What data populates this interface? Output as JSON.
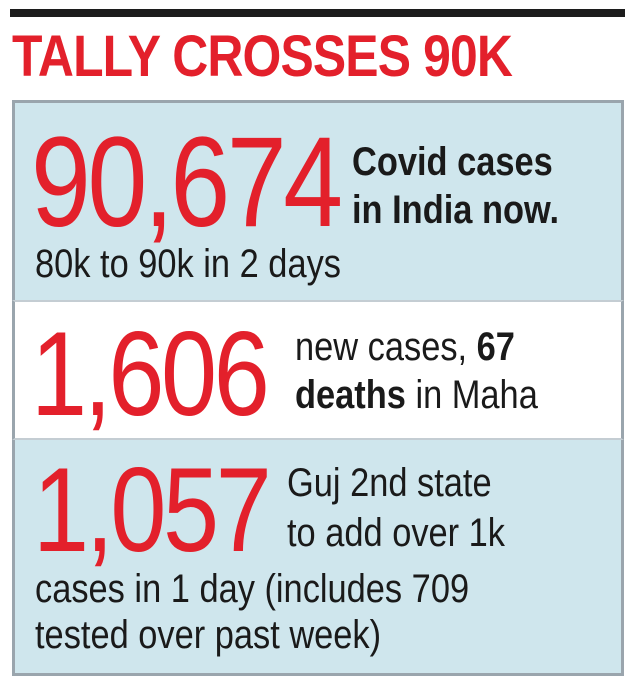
{
  "headline": "TALLY CROSSES 90K",
  "colors": {
    "accent_red": "#e3202b",
    "panel_blue": "#cfe6ed",
    "text_dark": "#1a1a1a"
  },
  "stats": [
    {
      "number": "90,674",
      "line1": "Covid cases",
      "line2": "in India now.",
      "line3": "80k to 90k in 2 days"
    },
    {
      "number": "1,606",
      "line1_plain": "new cases, ",
      "line1_bold": "67",
      "line2_bold": "deaths",
      "line2_plain": " in Maha"
    },
    {
      "number": "1,057",
      "line1": "Guj 2nd state",
      "line2": "to add over 1k",
      "line3": "cases in 1 day (includes 709",
      "line4": "tested over past week)"
    }
  ]
}
